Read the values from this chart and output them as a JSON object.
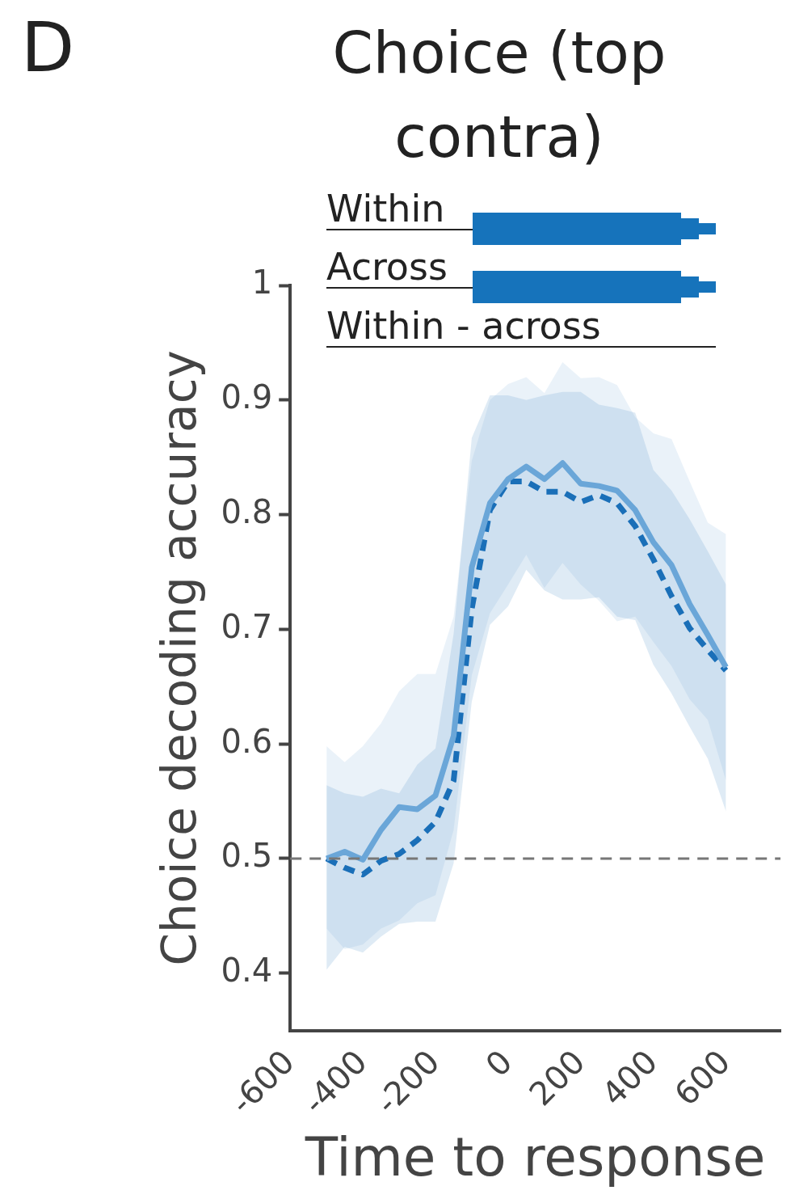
{
  "chart_data": {
    "type": "line",
    "title": "Choice (top contra)",
    "xlabel": "Time to response",
    "ylabel": "Choice decoding accuracy",
    "annotations": [
      "D",
      "Within",
      "Across",
      "Within - across"
    ],
    "x": [
      -500,
      -450,
      -400,
      -350,
      -300,
      -250,
      -200,
      -150,
      -100,
      -50,
      0,
      50,
      100,
      150,
      200,
      250,
      300,
      350,
      400,
      450,
      500,
      550,
      600
    ],
    "series": [
      {
        "color": "#6aa6d8",
        "line_style": "solid",
        "values": [
          0.5,
          0.506,
          0.499,
          0.525,
          0.545,
          0.543,
          0.555,
          0.607,
          0.754,
          0.81,
          0.831,
          0.842,
          0.831,
          0.845,
          0.827,
          0.825,
          0.821,
          0.804,
          0.776,
          0.756,
          0.722,
          0.695,
          0.667
        ],
        "upper": [
          0.598,
          0.584,
          0.598,
          0.618,
          0.646,
          0.661,
          0.661,
          0.711,
          0.847,
          0.9,
          0.914,
          0.92,
          0.906,
          0.933,
          0.919,
          0.92,
          0.913,
          0.885,
          0.871,
          0.866,
          0.829,
          0.793,
          0.783
        ],
        "lower": [
          0.439,
          0.421,
          0.425,
          0.439,
          0.446,
          0.461,
          0.468,
          0.525,
          0.66,
          0.714,
          0.739,
          0.765,
          0.736,
          0.758,
          0.739,
          0.725,
          0.707,
          0.711,
          0.689,
          0.668,
          0.639,
          0.621,
          0.568
        ]
      },
      {
        "color": "#1a6fb8",
        "line_style": "dashed",
        "values": [
          0.5,
          0.492,
          0.486,
          0.498,
          0.504,
          0.516,
          0.532,
          0.568,
          0.718,
          0.804,
          0.829,
          0.829,
          0.82,
          0.82,
          0.811,
          0.817,
          0.81,
          0.79,
          0.761,
          0.729,
          0.701,
          0.682,
          0.664
        ],
        "upper": [
          0.564,
          0.557,
          0.554,
          0.561,
          0.557,
          0.582,
          0.596,
          0.696,
          0.867,
          0.904,
          0.904,
          0.9,
          0.904,
          0.907,
          0.907,
          0.896,
          0.893,
          0.889,
          0.839,
          0.821,
          0.796,
          0.768,
          0.739
        ],
        "lower": [
          0.403,
          0.423,
          0.418,
          0.432,
          0.443,
          0.445,
          0.445,
          0.496,
          0.637,
          0.704,
          0.72,
          0.752,
          0.734,
          0.726,
          0.726,
          0.728,
          0.711,
          0.708,
          0.669,
          0.644,
          0.615,
          0.587,
          0.541
        ]
      }
    ],
    "ref_lines": [
      {
        "axis": "y",
        "value": 0.5,
        "color": "#777777",
        "line_style": "dashed"
      }
    ],
    "xlim": [
      -600,
      750
    ],
    "xticks": [
      -600,
      -400,
      -200,
      0,
      200,
      400,
      600
    ],
    "ylim": [
      0.35,
      1
    ],
    "yticks": [
      0.4,
      0.5,
      0.6,
      0.7,
      0.8,
      0.9,
      1
    ],
    "grid": false,
    "legend": false,
    "marker": "none"
  }
}
